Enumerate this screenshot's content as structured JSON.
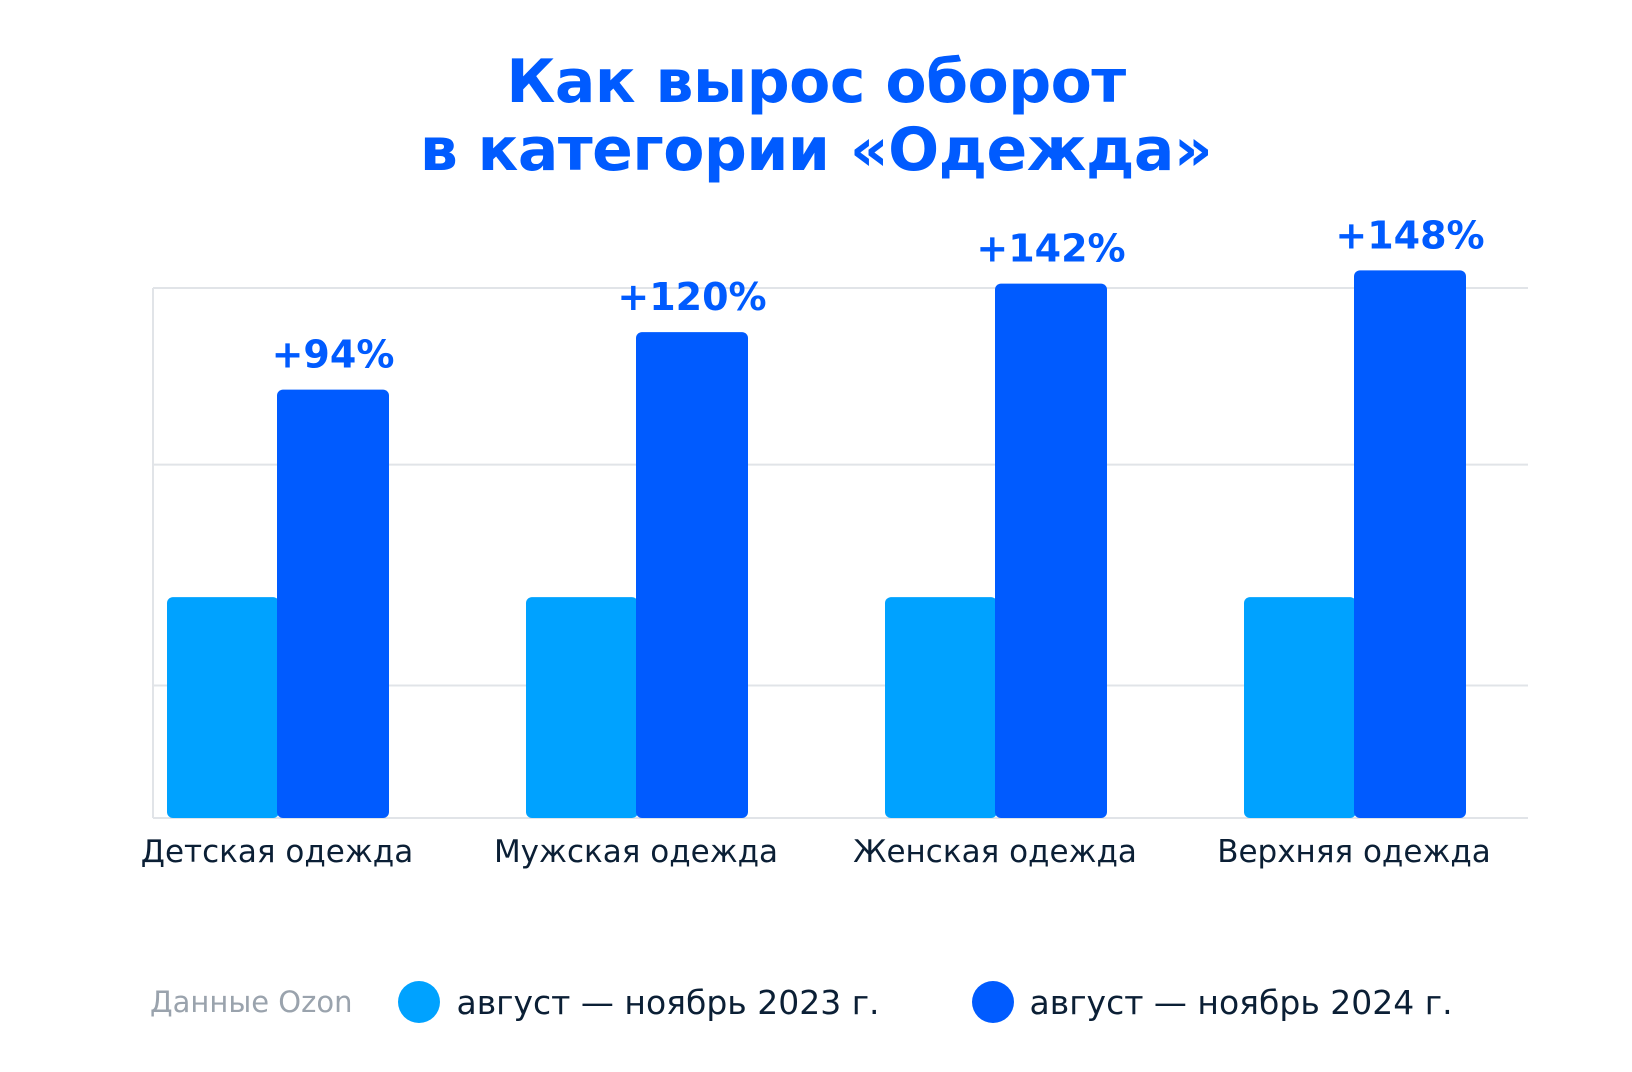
{
  "title": {
    "line1": "Как вырос оборот",
    "line2": "в категории «Одежда»"
  },
  "chart_data": {
    "type": "bar",
    "title": "Как вырос оборот в категории «Одежда»",
    "categories": [
      "Детская одежда",
      "Мужская одежда",
      "Женская одежда",
      "Верхняя одежда"
    ],
    "series": [
      {
        "name": "август — ноябрь 2023 г.",
        "values": [
          100,
          100,
          100,
          100
        ],
        "color": "#00a2ff"
      },
      {
        "name": "август — ноябрь 2024 г.",
        "values": [
          194,
          220,
          242,
          248
        ],
        "color": "#005bff"
      }
    ],
    "data_labels": [
      "+94%",
      "+120%",
      "+142%",
      "+148%"
    ],
    "ylim": [
      0,
      240
    ],
    "grid": true,
    "legend": "bottom",
    "colors": {
      "label": "#005bff",
      "category_text": "#0b1f35",
      "gridline": "#e1e4e8"
    }
  },
  "legend": {
    "source": "Данные Ozon",
    "items": [
      {
        "label": "август — ноябрь 2023 г.",
        "color": "#00a2ff"
      },
      {
        "label": "август — ноябрь 2024 г.",
        "color": "#005bff"
      }
    ]
  }
}
